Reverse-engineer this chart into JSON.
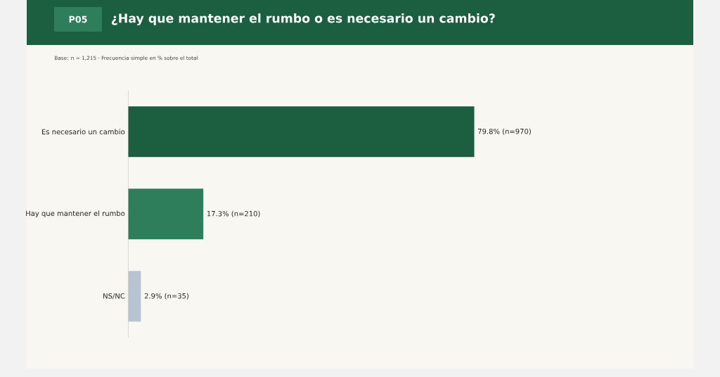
{
  "chart_data": {
    "type": "bar",
    "orientation": "horizontal",
    "title": "¿Hay que mantener el rumbo o es necesario un cambio?",
    "subtitle": "Base: n = 1,215 · Frecuencia simple en % sobre el total",
    "annotations": [
      "P05"
    ],
    "categories": [
      "Es necesario un cambio",
      "Hay que mantener el rumbo",
      "NS/NC"
    ],
    "values": [
      79.8,
      17.3,
      2.9
    ],
    "colors": [
      "#1c5e40",
      "#2e7d5b",
      "#b8c4d2"
    ],
    "value_labels": [
      "79.8%  (n=970)",
      "17.3%  (n=210)",
      "2.9%  (n=35)"
    ]
  }
}
